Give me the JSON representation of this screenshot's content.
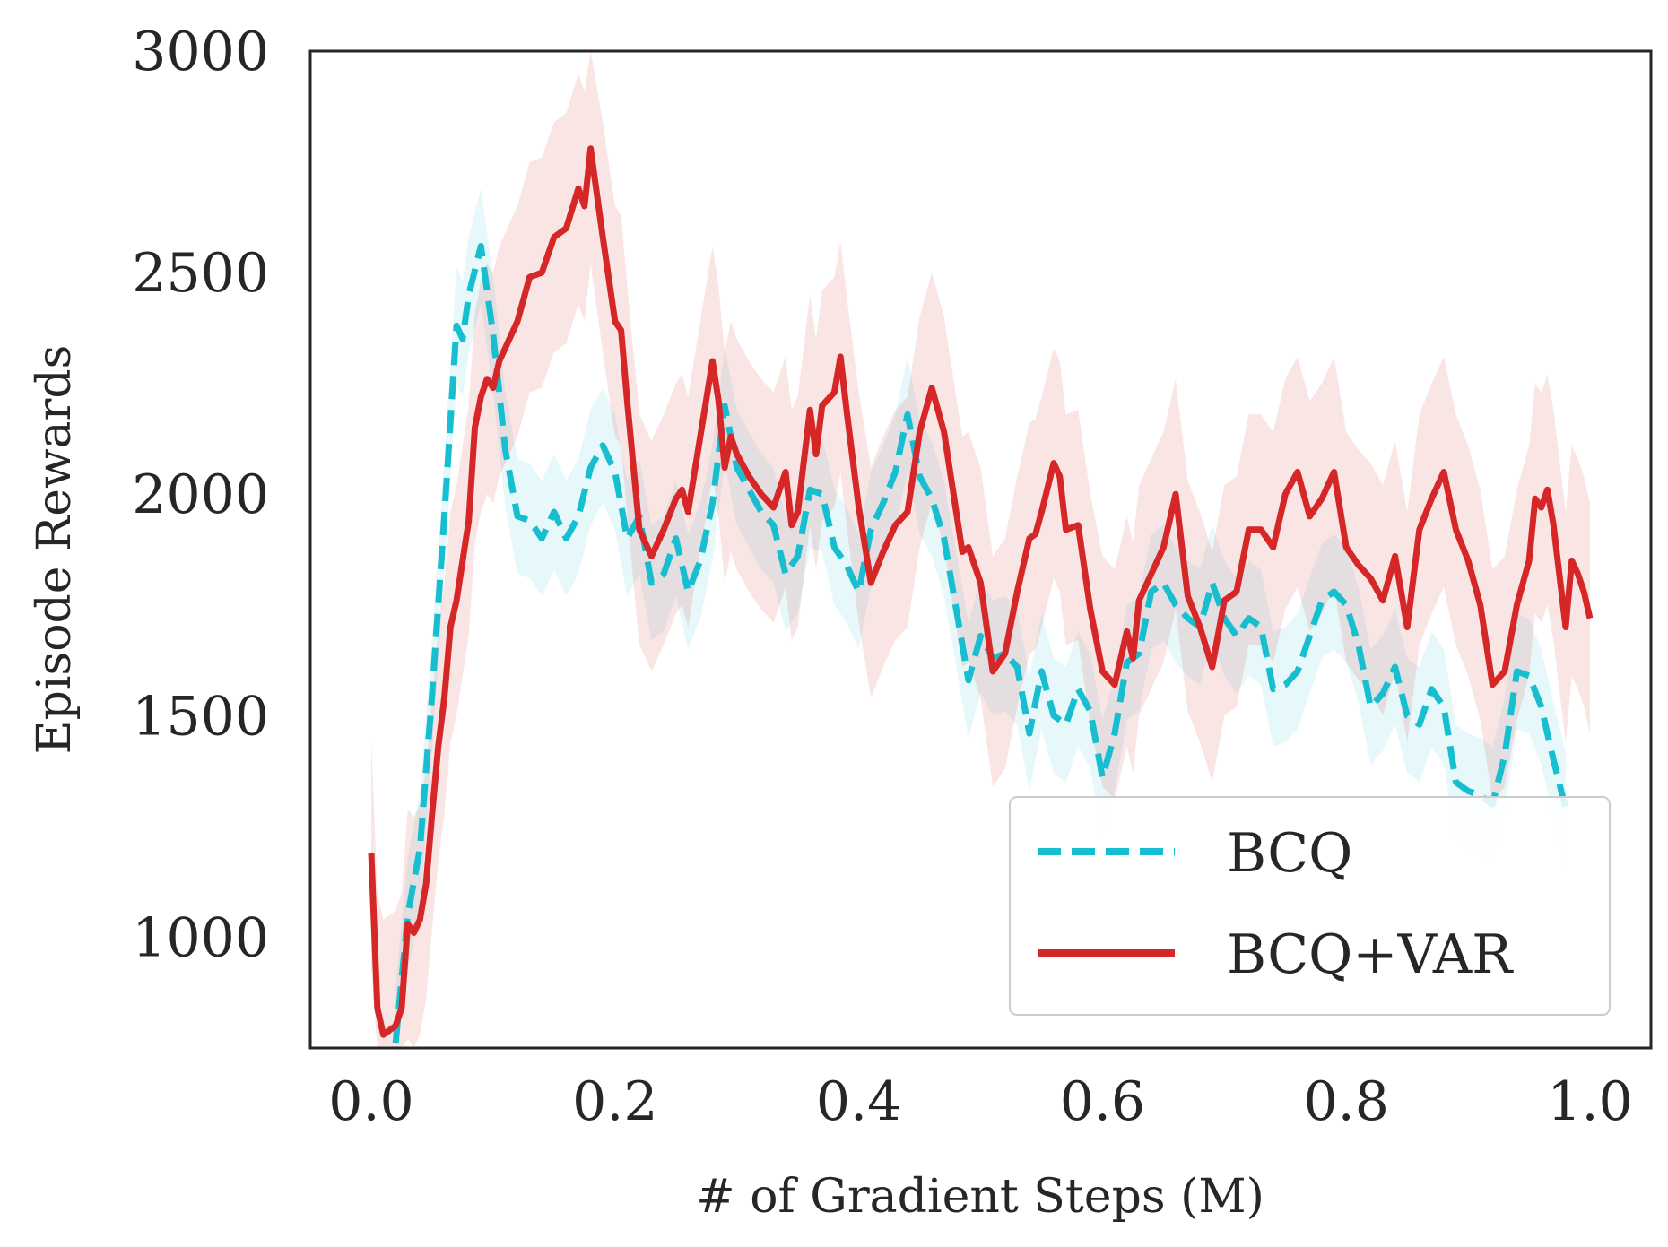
{
  "chart_data": {
    "type": "line",
    "title": "",
    "xlabel": "# of Gradient Steps (M)",
    "ylabel": "Episode Rewards",
    "xlim": [
      -0.05,
      1.05
    ],
    "ylim": [
      750,
      3000
    ],
    "xticks": [
      0.0,
      0.2,
      0.4,
      0.6,
      0.8,
      1.0
    ],
    "xtick_labels": [
      "0.0",
      "0.2",
      "0.4",
      "0.6",
      "0.8",
      "1.0"
    ],
    "yticks": [
      1000,
      1500,
      2000,
      2500,
      3000
    ],
    "ytick_labels": [
      "1000",
      "1500",
      "2000",
      "2500",
      "3000"
    ],
    "grid": false,
    "legend_position": "lower-right",
    "series": [
      {
        "name": "BCQ",
        "color": "#17becf",
        "style": "dashed",
        "band_spread": 130,
        "points": [
          [
            0.02,
            760
          ],
          [
            0.03,
            1050
          ],
          [
            0.04,
            1200
          ],
          [
            0.05,
            1550
          ],
          [
            0.06,
            1950
          ],
          [
            0.07,
            2380
          ],
          [
            0.075,
            2350
          ],
          [
            0.08,
            2450
          ],
          [
            0.09,
            2560
          ],
          [
            0.1,
            2360
          ],
          [
            0.11,
            2100
          ],
          [
            0.12,
            1950
          ],
          [
            0.13,
            1940
          ],
          [
            0.14,
            1900
          ],
          [
            0.15,
            1960
          ],
          [
            0.16,
            1900
          ],
          [
            0.17,
            1950
          ],
          [
            0.18,
            2060
          ],
          [
            0.19,
            2110
          ],
          [
            0.2,
            2050
          ],
          [
            0.21,
            1900
          ],
          [
            0.22,
            1950
          ],
          [
            0.23,
            1800
          ],
          [
            0.24,
            1820
          ],
          [
            0.25,
            1900
          ],
          [
            0.26,
            1780
          ],
          [
            0.27,
            1850
          ],
          [
            0.28,
            1980
          ],
          [
            0.29,
            2200
          ],
          [
            0.3,
            2060
          ],
          [
            0.31,
            2010
          ],
          [
            0.32,
            1960
          ],
          [
            0.33,
            1930
          ],
          [
            0.34,
            1820
          ],
          [
            0.35,
            1860
          ],
          [
            0.36,
            2010
          ],
          [
            0.37,
            2000
          ],
          [
            0.38,
            1880
          ],
          [
            0.39,
            1840
          ],
          [
            0.4,
            1780
          ],
          [
            0.41,
            1920
          ],
          [
            0.42,
            1980
          ],
          [
            0.43,
            2050
          ],
          [
            0.44,
            2180
          ],
          [
            0.45,
            2040
          ],
          [
            0.46,
            1990
          ],
          [
            0.47,
            1900
          ],
          [
            0.48,
            1740
          ],
          [
            0.49,
            1580
          ],
          [
            0.5,
            1680
          ],
          [
            0.51,
            1630
          ],
          [
            0.52,
            1640
          ],
          [
            0.53,
            1610
          ],
          [
            0.54,
            1460
          ],
          [
            0.55,
            1600
          ],
          [
            0.56,
            1500
          ],
          [
            0.57,
            1480
          ],
          [
            0.58,
            1560
          ],
          [
            0.59,
            1510
          ],
          [
            0.6,
            1360
          ],
          [
            0.61,
            1460
          ],
          [
            0.62,
            1620
          ],
          [
            0.63,
            1640
          ],
          [
            0.64,
            1780
          ],
          [
            0.65,
            1800
          ],
          [
            0.66,
            1750
          ],
          [
            0.67,
            1720
          ],
          [
            0.68,
            1700
          ],
          [
            0.69,
            1800
          ],
          [
            0.7,
            1720
          ],
          [
            0.71,
            1680
          ],
          [
            0.72,
            1720
          ],
          [
            0.73,
            1700
          ],
          [
            0.74,
            1560
          ],
          [
            0.75,
            1570
          ],
          [
            0.76,
            1600
          ],
          [
            0.77,
            1680
          ],
          [
            0.78,
            1760
          ],
          [
            0.79,
            1780
          ],
          [
            0.8,
            1750
          ],
          [
            0.81,
            1660
          ],
          [
            0.82,
            1520
          ],
          [
            0.83,
            1550
          ],
          [
            0.84,
            1610
          ],
          [
            0.85,
            1500
          ],
          [
            0.86,
            1480
          ],
          [
            0.87,
            1560
          ],
          [
            0.88,
            1520
          ],
          [
            0.89,
            1350
          ],
          [
            0.9,
            1330
          ],
          [
            0.91,
            1320
          ],
          [
            0.92,
            1300
          ],
          [
            0.93,
            1410
          ],
          [
            0.94,
            1600
          ],
          [
            0.95,
            1590
          ],
          [
            0.96,
            1520
          ],
          [
            0.97,
            1400
          ],
          [
            0.98,
            1290
          ]
        ]
      },
      {
        "name": "BCQ+VAR",
        "color": "#d62728",
        "style": "solid",
        "band_spread": 260,
        "points": [
          [
            0.0,
            1190
          ],
          [
            0.005,
            840
          ],
          [
            0.01,
            780
          ],
          [
            0.02,
            800
          ],
          [
            0.025,
            840
          ],
          [
            0.03,
            1030
          ],
          [
            0.035,
            1010
          ],
          [
            0.04,
            1040
          ],
          [
            0.045,
            1120
          ],
          [
            0.05,
            1280
          ],
          [
            0.055,
            1430
          ],
          [
            0.06,
            1540
          ],
          [
            0.065,
            1700
          ],
          [
            0.07,
            1760
          ],
          [
            0.08,
            1940
          ],
          [
            0.085,
            2150
          ],
          [
            0.09,
            2220
          ],
          [
            0.095,
            2260
          ],
          [
            0.1,
            2240
          ],
          [
            0.105,
            2300
          ],
          [
            0.11,
            2330
          ],
          [
            0.12,
            2390
          ],
          [
            0.13,
            2490
          ],
          [
            0.14,
            2500
          ],
          [
            0.15,
            2580
          ],
          [
            0.16,
            2600
          ],
          [
            0.17,
            2690
          ],
          [
            0.175,
            2650
          ],
          [
            0.18,
            2780
          ],
          [
            0.19,
            2580
          ],
          [
            0.2,
            2390
          ],
          [
            0.205,
            2370
          ],
          [
            0.21,
            2210
          ],
          [
            0.22,
            1920
          ],
          [
            0.23,
            1860
          ],
          [
            0.24,
            1920
          ],
          [
            0.25,
            1990
          ],
          [
            0.255,
            2010
          ],
          [
            0.26,
            1960
          ],
          [
            0.27,
            2130
          ],
          [
            0.28,
            2300
          ],
          [
            0.285,
            2210
          ],
          [
            0.29,
            2060
          ],
          [
            0.295,
            2130
          ],
          [
            0.3,
            2090
          ],
          [
            0.31,
            2040
          ],
          [
            0.32,
            2000
          ],
          [
            0.33,
            1970
          ],
          [
            0.34,
            2050
          ],
          [
            0.345,
            1930
          ],
          [
            0.35,
            1960
          ],
          [
            0.36,
            2190
          ],
          [
            0.365,
            2090
          ],
          [
            0.37,
            2200
          ],
          [
            0.38,
            2230
          ],
          [
            0.385,
            2310
          ],
          [
            0.39,
            2190
          ],
          [
            0.4,
            1970
          ],
          [
            0.41,
            1800
          ],
          [
            0.42,
            1870
          ],
          [
            0.43,
            1930
          ],
          [
            0.44,
            1960
          ],
          [
            0.45,
            2140
          ],
          [
            0.455,
            2190
          ],
          [
            0.46,
            2240
          ],
          [
            0.47,
            2140
          ],
          [
            0.48,
            1960
          ],
          [
            0.485,
            1870
          ],
          [
            0.49,
            1880
          ],
          [
            0.5,
            1800
          ],
          [
            0.51,
            1600
          ],
          [
            0.52,
            1640
          ],
          [
            0.53,
            1780
          ],
          [
            0.54,
            1900
          ],
          [
            0.545,
            1910
          ],
          [
            0.55,
            1960
          ],
          [
            0.56,
            2070
          ],
          [
            0.565,
            2040
          ],
          [
            0.57,
            1920
          ],
          [
            0.58,
            1930
          ],
          [
            0.59,
            1740
          ],
          [
            0.6,
            1600
          ],
          [
            0.61,
            1570
          ],
          [
            0.62,
            1690
          ],
          [
            0.625,
            1630
          ],
          [
            0.63,
            1760
          ],
          [
            0.64,
            1820
          ],
          [
            0.65,
            1880
          ],
          [
            0.66,
            2000
          ],
          [
            0.67,
            1770
          ],
          [
            0.68,
            1700
          ],
          [
            0.69,
            1610
          ],
          [
            0.7,
            1760
          ],
          [
            0.71,
            1780
          ],
          [
            0.72,
            1920
          ],
          [
            0.73,
            1920
          ],
          [
            0.74,
            1880
          ],
          [
            0.75,
            2000
          ],
          [
            0.76,
            2050
          ],
          [
            0.77,
            1950
          ],
          [
            0.78,
            1990
          ],
          [
            0.79,
            2050
          ],
          [
            0.8,
            1880
          ],
          [
            0.81,
            1840
          ],
          [
            0.82,
            1810
          ],
          [
            0.83,
            1760
          ],
          [
            0.84,
            1860
          ],
          [
            0.85,
            1700
          ],
          [
            0.86,
            1920
          ],
          [
            0.87,
            1990
          ],
          [
            0.88,
            2050
          ],
          [
            0.89,
            1920
          ],
          [
            0.9,
            1850
          ],
          [
            0.91,
            1750
          ],
          [
            0.92,
            1570
          ],
          [
            0.93,
            1600
          ],
          [
            0.94,
            1750
          ],
          [
            0.95,
            1850
          ],
          [
            0.955,
            1990
          ],
          [
            0.96,
            1970
          ],
          [
            0.965,
            2010
          ],
          [
            0.97,
            1930
          ],
          [
            0.98,
            1700
          ],
          [
            0.985,
            1850
          ],
          [
            0.99,
            1820
          ],
          [
            0.995,
            1780
          ],
          [
            1.0,
            1720
          ]
        ]
      }
    ]
  }
}
